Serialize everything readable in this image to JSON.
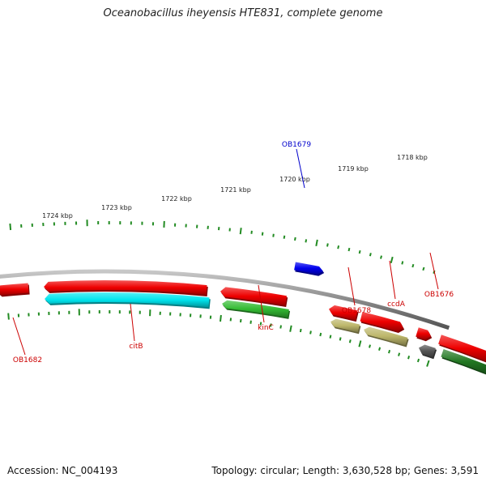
{
  "title": "Oceanobacillus iheyensis HTE831, complete genome",
  "footer": {
    "accession": "Accession: NC_004193",
    "summary": "Topology: circular; Length: 3,630,528 bp; Genes: 3,591"
  },
  "colors": {
    "backbone": "#8a8a8a",
    "tick": "#228b22",
    "label_red": "#cc0000",
    "label_blue": "#0000cc",
    "red": "#ee0000",
    "cyan": "#00e5ee",
    "green": "#33bb33",
    "dark_green": "#227722",
    "khaki": "#bdb76b",
    "gray": "#555555",
    "blue": "#0000ee"
  },
  "scale_labels": [
    "1718 kbp",
    "1719 kbp",
    "1720 kbp",
    "1721 kbp",
    "1722 kbp",
    "1723 kbp",
    "1724 kbp"
  ],
  "gene_labels": [
    {
      "name": "OB1679",
      "color": "blue"
    },
    {
      "name": "OB1676",
      "color": "red"
    },
    {
      "name": "ccdA",
      "color": "red"
    },
    {
      "name": "OB1678",
      "color": "red"
    },
    {
      "name": "kinC",
      "color": "red"
    },
    {
      "name": "citB",
      "color": "red"
    },
    {
      "name": "OB1682",
      "color": "red"
    }
  ],
  "features": {
    "forward_outer": [
      {
        "color": "blue"
      }
    ],
    "forward": [
      {
        "color": "red"
      },
      {
        "color": "red"
      },
      {
        "color": "red"
      }
    ],
    "forward_inner": [
      {
        "color": "dark_green"
      }
    ],
    "reverse": [
      {
        "color": "red"
      },
      {
        "color": "red"
      },
      {
        "color": "red"
      },
      {
        "color": "red"
      },
      {
        "color": "red"
      },
      {
        "color": "gray"
      }
    ],
    "reverse_inner": [
      {
        "color": "cyan"
      },
      {
        "color": "green"
      },
      {
        "color": "khaki"
      },
      {
        "color": "khaki"
      },
      {
        "color": "green"
      }
    ]
  }
}
